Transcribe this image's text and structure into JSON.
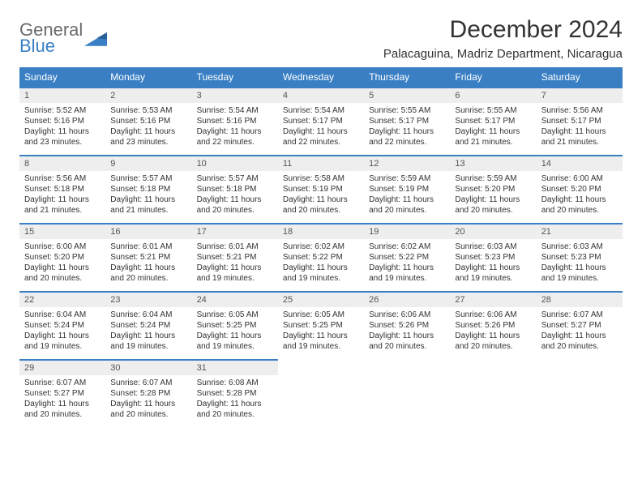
{
  "logo": {
    "word1": "General",
    "word2": "Blue"
  },
  "title": "December 2024",
  "location": "Palacaguina, Madriz Department, Nicaragua",
  "colors": {
    "header_bg": "#3a7fc4",
    "header_text": "#ffffff",
    "daynum_bg": "#eeeeee",
    "daynum_border": "#3a7fc4",
    "text": "#333333",
    "logo_gray": "#6b6b6b",
    "logo_blue": "#3a7fc4"
  },
  "weekdays": [
    "Sunday",
    "Monday",
    "Tuesday",
    "Wednesday",
    "Thursday",
    "Friday",
    "Saturday"
  ],
  "weeks": [
    [
      {
        "n": "1",
        "sr": "Sunrise: 5:52 AM",
        "ss": "Sunset: 5:16 PM",
        "dl": "Daylight: 11 hours and 23 minutes."
      },
      {
        "n": "2",
        "sr": "Sunrise: 5:53 AM",
        "ss": "Sunset: 5:16 PM",
        "dl": "Daylight: 11 hours and 23 minutes."
      },
      {
        "n": "3",
        "sr": "Sunrise: 5:54 AM",
        "ss": "Sunset: 5:16 PM",
        "dl": "Daylight: 11 hours and 22 minutes."
      },
      {
        "n": "4",
        "sr": "Sunrise: 5:54 AM",
        "ss": "Sunset: 5:17 PM",
        "dl": "Daylight: 11 hours and 22 minutes."
      },
      {
        "n": "5",
        "sr": "Sunrise: 5:55 AM",
        "ss": "Sunset: 5:17 PM",
        "dl": "Daylight: 11 hours and 22 minutes."
      },
      {
        "n": "6",
        "sr": "Sunrise: 5:55 AM",
        "ss": "Sunset: 5:17 PM",
        "dl": "Daylight: 11 hours and 21 minutes."
      },
      {
        "n": "7",
        "sr": "Sunrise: 5:56 AM",
        "ss": "Sunset: 5:17 PM",
        "dl": "Daylight: 11 hours and 21 minutes."
      }
    ],
    [
      {
        "n": "8",
        "sr": "Sunrise: 5:56 AM",
        "ss": "Sunset: 5:18 PM",
        "dl": "Daylight: 11 hours and 21 minutes."
      },
      {
        "n": "9",
        "sr": "Sunrise: 5:57 AM",
        "ss": "Sunset: 5:18 PM",
        "dl": "Daylight: 11 hours and 21 minutes."
      },
      {
        "n": "10",
        "sr": "Sunrise: 5:57 AM",
        "ss": "Sunset: 5:18 PM",
        "dl": "Daylight: 11 hours and 20 minutes."
      },
      {
        "n": "11",
        "sr": "Sunrise: 5:58 AM",
        "ss": "Sunset: 5:19 PM",
        "dl": "Daylight: 11 hours and 20 minutes."
      },
      {
        "n": "12",
        "sr": "Sunrise: 5:59 AM",
        "ss": "Sunset: 5:19 PM",
        "dl": "Daylight: 11 hours and 20 minutes."
      },
      {
        "n": "13",
        "sr": "Sunrise: 5:59 AM",
        "ss": "Sunset: 5:20 PM",
        "dl": "Daylight: 11 hours and 20 minutes."
      },
      {
        "n": "14",
        "sr": "Sunrise: 6:00 AM",
        "ss": "Sunset: 5:20 PM",
        "dl": "Daylight: 11 hours and 20 minutes."
      }
    ],
    [
      {
        "n": "15",
        "sr": "Sunrise: 6:00 AM",
        "ss": "Sunset: 5:20 PM",
        "dl": "Daylight: 11 hours and 20 minutes."
      },
      {
        "n": "16",
        "sr": "Sunrise: 6:01 AM",
        "ss": "Sunset: 5:21 PM",
        "dl": "Daylight: 11 hours and 20 minutes."
      },
      {
        "n": "17",
        "sr": "Sunrise: 6:01 AM",
        "ss": "Sunset: 5:21 PM",
        "dl": "Daylight: 11 hours and 19 minutes."
      },
      {
        "n": "18",
        "sr": "Sunrise: 6:02 AM",
        "ss": "Sunset: 5:22 PM",
        "dl": "Daylight: 11 hours and 19 minutes."
      },
      {
        "n": "19",
        "sr": "Sunrise: 6:02 AM",
        "ss": "Sunset: 5:22 PM",
        "dl": "Daylight: 11 hours and 19 minutes."
      },
      {
        "n": "20",
        "sr": "Sunrise: 6:03 AM",
        "ss": "Sunset: 5:23 PM",
        "dl": "Daylight: 11 hours and 19 minutes."
      },
      {
        "n": "21",
        "sr": "Sunrise: 6:03 AM",
        "ss": "Sunset: 5:23 PM",
        "dl": "Daylight: 11 hours and 19 minutes."
      }
    ],
    [
      {
        "n": "22",
        "sr": "Sunrise: 6:04 AM",
        "ss": "Sunset: 5:24 PM",
        "dl": "Daylight: 11 hours and 19 minutes."
      },
      {
        "n": "23",
        "sr": "Sunrise: 6:04 AM",
        "ss": "Sunset: 5:24 PM",
        "dl": "Daylight: 11 hours and 19 minutes."
      },
      {
        "n": "24",
        "sr": "Sunrise: 6:05 AM",
        "ss": "Sunset: 5:25 PM",
        "dl": "Daylight: 11 hours and 19 minutes."
      },
      {
        "n": "25",
        "sr": "Sunrise: 6:05 AM",
        "ss": "Sunset: 5:25 PM",
        "dl": "Daylight: 11 hours and 19 minutes."
      },
      {
        "n": "26",
        "sr": "Sunrise: 6:06 AM",
        "ss": "Sunset: 5:26 PM",
        "dl": "Daylight: 11 hours and 20 minutes."
      },
      {
        "n": "27",
        "sr": "Sunrise: 6:06 AM",
        "ss": "Sunset: 5:26 PM",
        "dl": "Daylight: 11 hours and 20 minutes."
      },
      {
        "n": "28",
        "sr": "Sunrise: 6:07 AM",
        "ss": "Sunset: 5:27 PM",
        "dl": "Daylight: 11 hours and 20 minutes."
      }
    ],
    [
      {
        "n": "29",
        "sr": "Sunrise: 6:07 AM",
        "ss": "Sunset: 5:27 PM",
        "dl": "Daylight: 11 hours and 20 minutes."
      },
      {
        "n": "30",
        "sr": "Sunrise: 6:07 AM",
        "ss": "Sunset: 5:28 PM",
        "dl": "Daylight: 11 hours and 20 minutes."
      },
      {
        "n": "31",
        "sr": "Sunrise: 6:08 AM",
        "ss": "Sunset: 5:28 PM",
        "dl": "Daylight: 11 hours and 20 minutes."
      },
      null,
      null,
      null,
      null
    ]
  ]
}
